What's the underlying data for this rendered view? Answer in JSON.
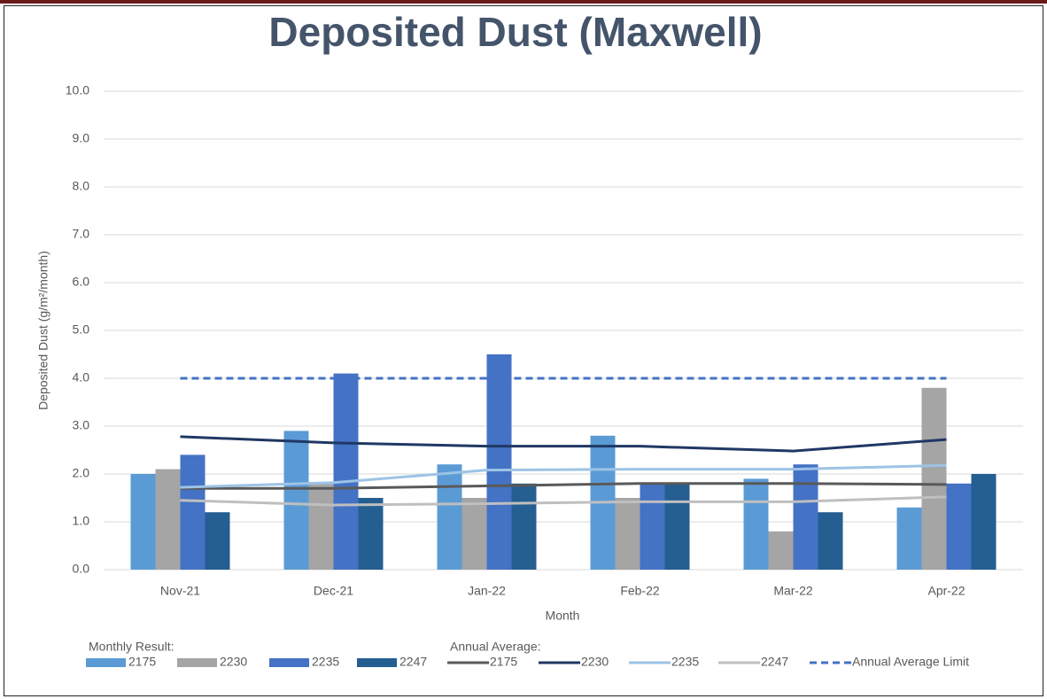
{
  "chart_data": {
    "type": "bar",
    "title": "Deposited Dust (Maxwell)",
    "y_label": "Deposited Dust (g/m²/month)",
    "x_label": "Month",
    "categories": [
      "Nov-21",
      "Dec-21",
      "Jan-22",
      "Feb-22",
      "Mar-22",
      "Apr-22"
    ],
    "legend_groups": [
      "Monthly  Result:",
      "Annual Average:"
    ],
    "series": [
      {
        "name": "2175",
        "kind": "bar",
        "color": "#5b9bd5",
        "values": [
          2.0,
          2.9,
          2.2,
          2.8,
          1.9,
          1.3
        ]
      },
      {
        "name": "2230",
        "kind": "bar",
        "color": "#a5a5a5",
        "values": [
          2.1,
          1.8,
          1.5,
          1.5,
          0.8,
          3.8
        ]
      },
      {
        "name": "2235",
        "kind": "bar",
        "color": "#4472c4",
        "values": [
          2.4,
          4.1,
          4.5,
          1.8,
          2.2,
          1.8
        ]
      },
      {
        "name": "2247",
        "kind": "bar",
        "color": "#255e91",
        "values": [
          1.2,
          1.5,
          1.8,
          1.8,
          1.2,
          2.0
        ]
      },
      {
        "name": "2175",
        "kind": "line",
        "color": "#595959",
        "values": [
          1.7,
          1.7,
          1.75,
          1.8,
          1.8,
          1.78
        ]
      },
      {
        "name": "2230",
        "kind": "line",
        "color": "#203864",
        "values": [
          2.78,
          2.65,
          2.58,
          2.58,
          2.48,
          2.72
        ]
      },
      {
        "name": "2235",
        "kind": "line",
        "color": "#9dc3e6",
        "values": [
          1.72,
          1.82,
          2.08,
          2.1,
          2.1,
          2.18
        ]
      },
      {
        "name": "2247",
        "kind": "line",
        "color": "#bfbfbf",
        "values": [
          1.45,
          1.35,
          1.38,
          1.42,
          1.42,
          1.52
        ]
      },
      {
        "name": "Annual Average Limit",
        "kind": "line",
        "dashed": true,
        "color": "#4472c4",
        "values": [
          4.0,
          4.0,
          4.0,
          4.0,
          4.0,
          4.0
        ]
      }
    ],
    "ylim": [
      0,
      10
    ],
    "yticks": [
      {
        "value": 0,
        "label": "0.0"
      },
      {
        "value": 1,
        "label": "1.0"
      },
      {
        "value": 2,
        "label": "2.0"
      },
      {
        "value": 3,
        "label": "3.0"
      },
      {
        "value": 4,
        "label": "4.0"
      },
      {
        "value": 5,
        "label": "5.0"
      },
      {
        "value": 6,
        "label": "6.0"
      },
      {
        "value": 7,
        "label": "7.0"
      },
      {
        "value": 8,
        "label": "8.0"
      },
      {
        "value": 9,
        "label": "9.0"
      },
      {
        "value": 10,
        "label": "10.0"
      }
    ],
    "grid": true
  }
}
